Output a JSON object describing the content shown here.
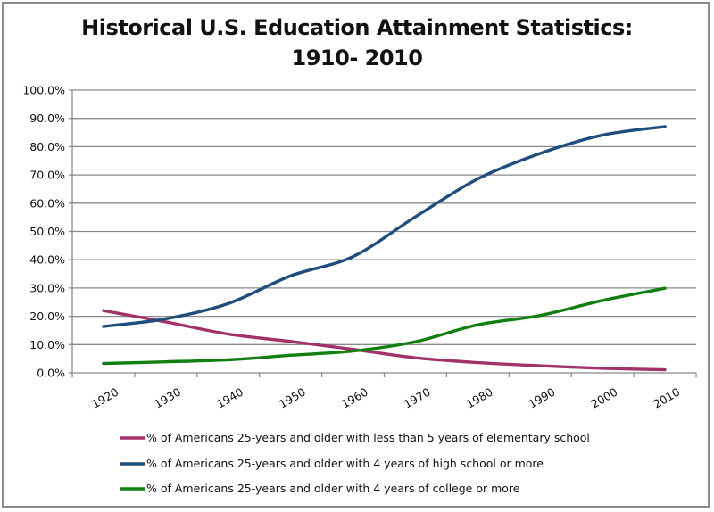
{
  "chart_data": {
    "type": "line",
    "title_lines": [
      "Historical U.S. Education Attainment Statistics:",
      "1910- 2010"
    ],
    "xlabel": "",
    "ylabel": "",
    "categories": [
      "1920",
      "1930",
      "1940",
      "1950",
      "1960",
      "1970",
      "1980",
      "1990",
      "2000",
      "2010"
    ],
    "ylim": [
      0,
      100
    ],
    "y_ticks": [
      "0.0%",
      "10.0%",
      "20.0%",
      "30.0%",
      "40.0%",
      "50.0%",
      "60.0%",
      "70.0%",
      "80.0%",
      "90.0%",
      "100.0%"
    ],
    "y_tick_values": [
      0,
      10,
      20,
      30,
      40,
      50,
      60,
      70,
      80,
      90,
      100
    ],
    "grid": true,
    "legend_position": "bottom",
    "series": [
      {
        "name": "% of Americans 25-years and older with less than 5 years of elementary school",
        "color": "#a2336a",
        "values": [
          22.0,
          18.0,
          13.7,
          11.1,
          8.3,
          5.3,
          3.6,
          2.5,
          1.6,
          1.1
        ]
      },
      {
        "name": "% of Americans 25-years and older with 4 years of high school or more",
        "color": "#1f4e7c",
        "values": [
          16.4,
          19.1,
          24.5,
          34.3,
          41.1,
          55.2,
          68.6,
          77.6,
          84.1,
          87.1
        ]
      },
      {
        "name": "% of Americans 25-years and older with 4 years of college or more",
        "color": "#118011",
        "values": [
          3.3,
          3.9,
          4.6,
          6.2,
          7.7,
          11.0,
          17.0,
          20.3,
          25.6,
          29.9
        ]
      }
    ]
  }
}
